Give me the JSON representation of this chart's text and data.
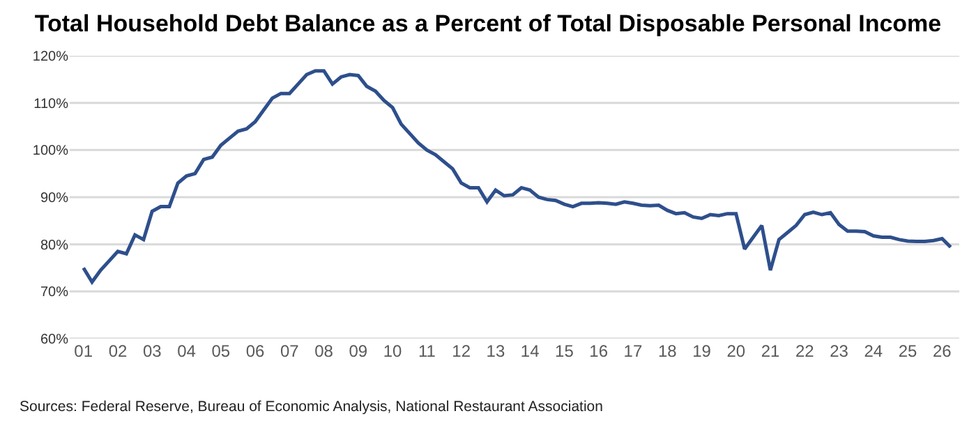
{
  "chart_data": {
    "type": "line",
    "title": "Total Household Debt Balance as a Percent of Total Disposable Personal Income",
    "annotations": [
      "Sources: Federal Reserve, Bureau of Economic Analysis, National Restaurant Association"
    ],
    "x": [
      2001,
      2001.25,
      2001.5,
      2001.75,
      2002,
      2002.25,
      2002.5,
      2002.75,
      2003,
      2003.25,
      2003.5,
      2003.75,
      2004,
      2004.25,
      2004.5,
      2004.75,
      2005,
      2005.25,
      2005.5,
      2005.75,
      2006,
      2006.25,
      2006.5,
      2006.75,
      2007,
      2007.25,
      2007.5,
      2007.75,
      2008,
      2008.25,
      2008.5,
      2008.75,
      2009,
      2009.25,
      2009.5,
      2009.75,
      2010,
      2010.25,
      2010.5,
      2010.75,
      2011,
      2011.25,
      2011.5,
      2011.75,
      2012,
      2012.25,
      2012.5,
      2012.75,
      2013,
      2013.25,
      2013.5,
      2013.75,
      2014,
      2014.25,
      2014.5,
      2014.75,
      2015,
      2015.25,
      2015.5,
      2015.75,
      2016,
      2016.25,
      2016.5,
      2016.75,
      2017,
      2017.25,
      2017.5,
      2017.75,
      2018,
      2018.25,
      2018.5,
      2018.75,
      2019,
      2019.25,
      2019.5,
      2019.75,
      2020,
      2020.25,
      2020.5,
      2020.75,
      2021,
      2021.25,
      2021.5,
      2021.75,
      2022,
      2022.25,
      2022.5,
      2022.75,
      2023,
      2023.25,
      2023.5,
      2023.75,
      2024,
      2024.25,
      2024.5,
      2024.75,
      2025,
      2025.25,
      2025.5,
      2025.75,
      2026,
      2026.25
    ],
    "series": [
      {
        "color": "#2e4f8c",
        "values": [
          75,
          72,
          74.5,
          76.5,
          78.5,
          78,
          82,
          81,
          87,
          88,
          88,
          93,
          94.5,
          95,
          98,
          98.5,
          101,
          102.5,
          104,
          104.5,
          106,
          108.5,
          111,
          112,
          112,
          114,
          116,
          116.8,
          116.8,
          114,
          115.5,
          116,
          115.8,
          113.5,
          112.5,
          110.5,
          109,
          105.5,
          103.5,
          101.5,
          100,
          99,
          97.5,
          96,
          93,
          92,
          92,
          89,
          91.5,
          90.3,
          90.5,
          92,
          91.5,
          90,
          89.5,
          89.3,
          88.5,
          88,
          88.7,
          88.7,
          88.8,
          88.7,
          88.5,
          89,
          88.7,
          88.3,
          88.2,
          88.3,
          87.2,
          86.5,
          86.7,
          85.8,
          85.5,
          86.3,
          86.1,
          86.5,
          86.5,
          79,
          81.5,
          84,
          74.5,
          81,
          82.5,
          84,
          86.3,
          86.8,
          86.3,
          86.7,
          84.2,
          82.8,
          82.8,
          82.7,
          81.8,
          81.5,
          81.5,
          81,
          80.7,
          80.6,
          80.6,
          80.8,
          81.2,
          79.4
        ]
      }
    ],
    "xlim": [
      2000.6,
      2026.5
    ],
    "xticks": [
      {
        "value": 2001,
        "label": "01"
      },
      {
        "value": 2002,
        "label": "02"
      },
      {
        "value": 2003,
        "label": "03"
      },
      {
        "value": 2004,
        "label": "04"
      },
      {
        "value": 2005,
        "label": "05"
      },
      {
        "value": 2006,
        "label": "06"
      },
      {
        "value": 2007,
        "label": "07"
      },
      {
        "value": 2008,
        "label": "08"
      },
      {
        "value": 2009,
        "label": "09"
      },
      {
        "value": 2010,
        "label": "10"
      },
      {
        "value": 2011,
        "label": "11"
      },
      {
        "value": 2012,
        "label": "12"
      },
      {
        "value": 2013,
        "label": "13"
      },
      {
        "value": 2014,
        "label": "14"
      },
      {
        "value": 2015,
        "label": "15"
      },
      {
        "value": 2016,
        "label": "16"
      },
      {
        "value": 2017,
        "label": "17"
      },
      {
        "value": 2018,
        "label": "18"
      },
      {
        "value": 2019,
        "label": "19"
      },
      {
        "value": 2020,
        "label": "20"
      },
      {
        "value": 2021,
        "label": "21"
      },
      {
        "value": 2022,
        "label": "22"
      },
      {
        "value": 2023,
        "label": "23"
      },
      {
        "value": 2024,
        "label": "24"
      },
      {
        "value": 2025,
        "label": "25"
      },
      {
        "value": 2026,
        "label": "26"
      }
    ],
    "ylim": [
      60,
      120
    ],
    "yticks": [
      {
        "value": 60,
        "label": "60%"
      },
      {
        "value": 70,
        "label": "70%"
      },
      {
        "value": 80,
        "label": "80%"
      },
      {
        "value": 90,
        "label": "90%"
      },
      {
        "value": 100,
        "label": "100%"
      },
      {
        "value": 110,
        "label": "110%"
      },
      {
        "value": 120,
        "label": "120%"
      }
    ],
    "grid": "y",
    "legend": false,
    "marker": "none",
    "line_style": "solid"
  }
}
